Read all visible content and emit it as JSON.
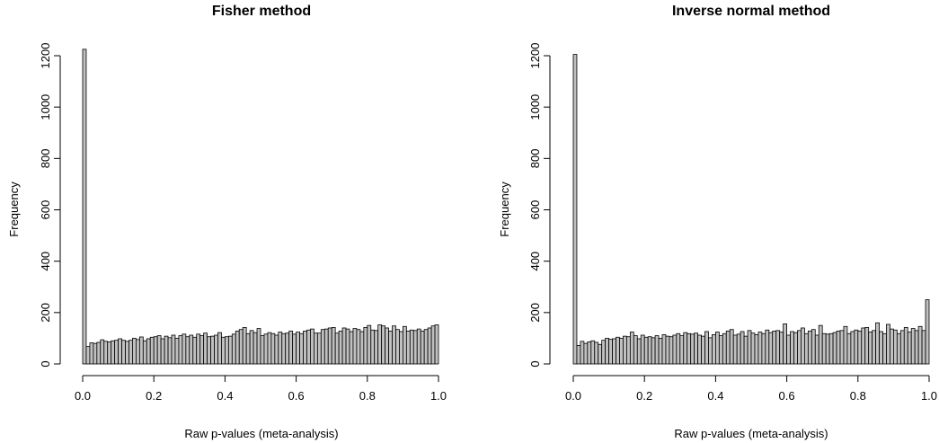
{
  "chart_data": [
    {
      "type": "bar",
      "subtype": "histogram",
      "title": "Fisher method",
      "xlabel": "Raw p-values (meta-analysis)",
      "ylabel": "Frequency",
      "xlim": [
        0,
        1
      ],
      "ylim": [
        0,
        1200
      ],
      "bin_width": 0.01,
      "grid": false,
      "x_ticks": [
        "0.0",
        "0.2",
        "0.4",
        "0.6",
        "0.8",
        "1.0"
      ],
      "y_ticks": [
        "0",
        "200",
        "400",
        "600",
        "800",
        "1000",
        "1200"
      ],
      "bar_color": "#c0c0c0",
      "values": [
        1225,
        68,
        82,
        80,
        84,
        94,
        88,
        86,
        90,
        92,
        98,
        92,
        88,
        92,
        100,
        95,
        105,
        90,
        98,
        104,
        106,
        110,
        98,
        108,
        102,
        112,
        100,
        110,
        116,
        106,
        112,
        104,
        116,
        110,
        120,
        106,
        108,
        112,
        122,
        104,
        106,
        108,
        116,
        128,
        134,
        142,
        118,
        130,
        122,
        138,
        110,
        116,
        122,
        118,
        112,
        124,
        118,
        120,
        128,
        116,
        124,
        118,
        128,
        132,
        136,
        120,
        120,
        134,
        136,
        140,
        142,
        120,
        128,
        140,
        136,
        126,
        138,
        134,
        126,
        142,
        150,
        132,
        130,
        152,
        148,
        140,
        128,
        148,
        134,
        126,
        146,
        128,
        132,
        130,
        136,
        128,
        134,
        140,
        148,
        152
      ]
    },
    {
      "type": "bar",
      "subtype": "histogram",
      "title": "Inverse normal method",
      "xlabel": "Raw p-values (meta-analysis)",
      "ylabel": "Frequency",
      "xlim": [
        0,
        1
      ],
      "ylim": [
        0,
        1200
      ],
      "bin_width": 0.01,
      "grid": false,
      "x_ticks": [
        "0.0",
        "0.2",
        "0.4",
        "0.6",
        "0.8",
        "1.0"
      ],
      "y_ticks": [
        "0",
        "200",
        "400",
        "600",
        "800",
        "1000",
        "1200"
      ],
      "bar_color": "#c0c0c0",
      "values": [
        1205,
        72,
        88,
        80,
        86,
        90,
        84,
        76,
        92,
        100,
        96,
        98,
        104,
        100,
        108,
        106,
        124,
        110,
        98,
        112,
        104,
        106,
        102,
        110,
        100,
        114,
        108,
        106,
        112,
        118,
        110,
        122,
        118,
        116,
        120,
        112,
        108,
        126,
        102,
        114,
        124,
        110,
        118,
        128,
        134,
        112,
        116,
        126,
        108,
        130,
        120,
        114,
        124,
        118,
        132,
        122,
        128,
        130,
        124,
        156,
        112,
        126,
        122,
        130,
        140,
        118,
        128,
        134,
        112,
        150,
        118,
        116,
        118,
        122,
        128,
        130,
        146,
        118,
        126,
        132,
        128,
        140,
        142,
        124,
        130,
        160,
        126,
        118,
        154,
        136,
        132,
        118,
        130,
        142,
        124,
        138,
        130,
        146,
        130,
        250
      ]
    }
  ]
}
